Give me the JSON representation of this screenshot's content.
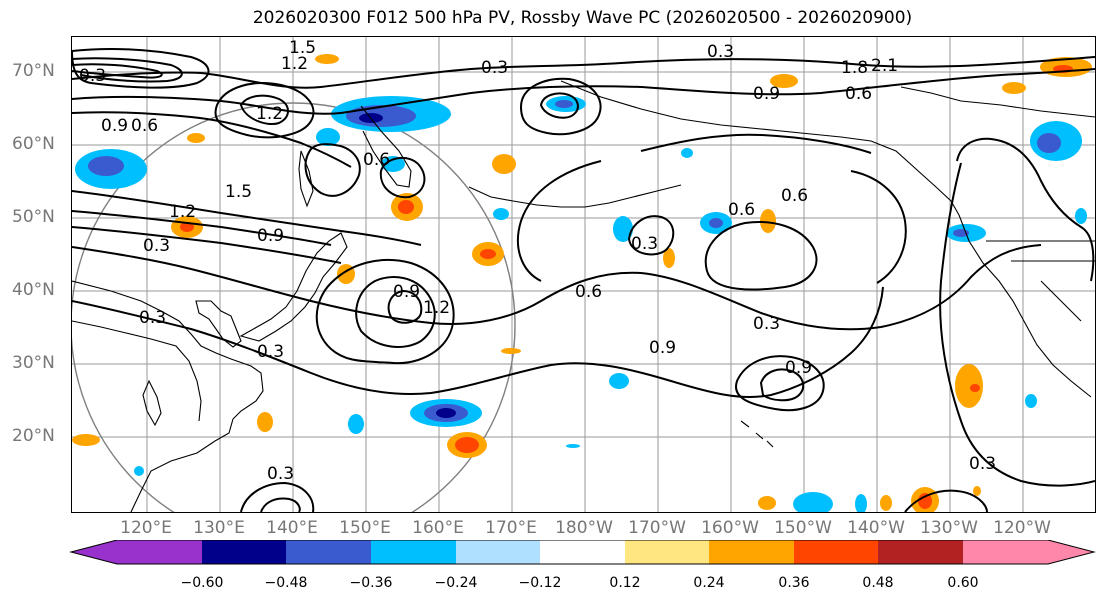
{
  "title": "2026020300 F012 500 hPa PV, Rossby Wave PC (2026020500 - 2026020900)",
  "lat_labels": [
    "70°N",
    "60°N",
    "50°N",
    "40°N",
    "30°N",
    "20°N"
  ],
  "lon_labels": [
    "120°E",
    "130°E",
    "140°E",
    "150°E",
    "160°E",
    "170°E",
    "180°W",
    "170°W",
    "160°W",
    "150°W",
    "140°W",
    "130°W",
    "120°W"
  ],
  "colorbar": {
    "ticks": [
      "−0.60",
      "−0.48",
      "−0.36",
      "−0.24",
      "−0.12",
      "0.12",
      "0.24",
      "0.36",
      "0.48",
      "0.60"
    ],
    "colors": [
      "#9932cc",
      "#00008b",
      "#3a5bcf",
      "#00bfff",
      "#b0e0ff",
      "#ffffff",
      "#ffe680",
      "#ffa500",
      "#ff4500",
      "#b22222",
      "#ff88aa"
    ]
  },
  "contour_labels": [
    "0.3",
    "1.2",
    "1.5",
    "0.9",
    "0.6",
    "1.8",
    "2.1",
    "0.3",
    "0.6",
    "0.9",
    "1.2",
    "1.5",
    "0.3",
    "0.6",
    "0.9",
    "1.2",
    "0.3",
    "0.6",
    "0.9",
    "0.6",
    "0.3",
    "0.6",
    "0.3",
    "0.3",
    "0.9",
    "1.2",
    "0.9",
    "0.3",
    "0.3",
    "0.3"
  ]
}
